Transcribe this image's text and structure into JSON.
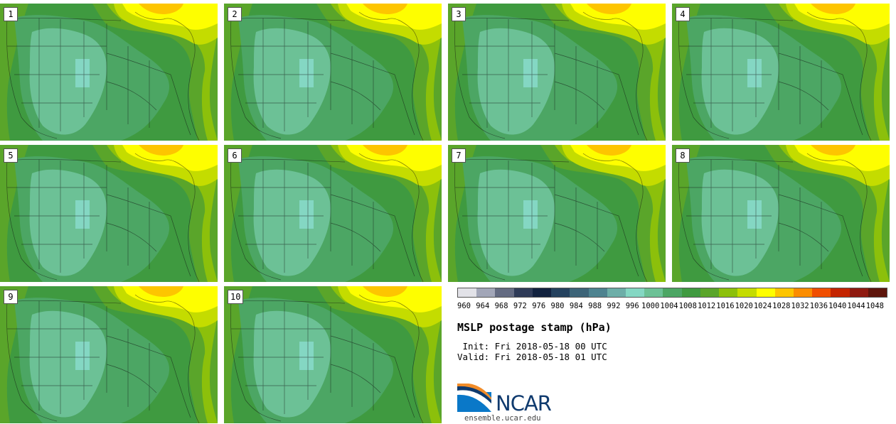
{
  "panels": [
    {
      "label": "1"
    },
    {
      "label": "2"
    },
    {
      "label": "3"
    },
    {
      "label": "4"
    },
    {
      "label": "5"
    },
    {
      "label": "6"
    },
    {
      "label": "7"
    },
    {
      "label": "8"
    },
    {
      "label": "9"
    },
    {
      "label": "10"
    }
  ],
  "colorbar": {
    "ticks": [
      "960",
      "964",
      "968",
      "972",
      "976",
      "980",
      "984",
      "988",
      "992",
      "996",
      "1000",
      "1004",
      "1008",
      "1012",
      "1016",
      "1020",
      "1024",
      "1028",
      "1032",
      "1036",
      "1040",
      "1044",
      "1048"
    ],
    "colors": [
      "#e2e2e8",
      "#a2a6b8",
      "#646b82",
      "#2f3b58",
      "#12223f",
      "#24415e",
      "#3d6478",
      "#4e8390",
      "#6daea8",
      "#84d7c3",
      "#6cc196",
      "#4ca664",
      "#3f9a40",
      "#5aa52a",
      "#8cc00b",
      "#c4dc00",
      "#fefe00",
      "#fdc500",
      "#fb8d00",
      "#f04e00",
      "#c42400",
      "#8f1a10",
      "#5e150c"
    ]
  },
  "title": "MSLP postage stamp (hPa)",
  "init": " Init: Fri 2018-05-18 00 UTC",
  "valid": "Valid: Fri 2018-05-18 01 UTC",
  "logo_text": "NCAR",
  "site": "ensemble.ucar.edu",
  "map_colors": {
    "c1008": "#4ca664",
    "c1012": "#3f9a40",
    "c1016": "#5aa52a",
    "c1020": "#8cc00b",
    "c1024": "#c4dc00",
    "c1028": "#fefe00",
    "c1032": "#fdc500",
    "c1004": "#6cc196",
    "c1000": "#84d7c3",
    "borders": "#111111"
  }
}
